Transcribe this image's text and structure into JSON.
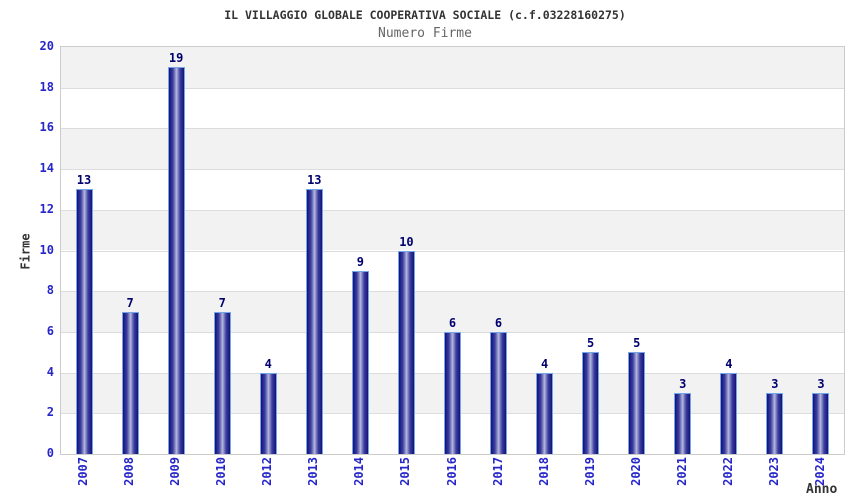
{
  "chart_data": {
    "type": "bar",
    "title": "IL VILLAGGIO GLOBALE COOPERATIVA SOCIALE (c.f.03228160275)",
    "subtitle": "Numero Firme",
    "xlabel": "Anno",
    "ylabel": "Firme",
    "categories": [
      "2007",
      "2008",
      "2009",
      "2010",
      "2012",
      "2013",
      "2014",
      "2015",
      "2016",
      "2017",
      "2018",
      "2019",
      "2020",
      "2021",
      "2022",
      "2023",
      "2024"
    ],
    "values": [
      13,
      7,
      19,
      7,
      4,
      13,
      9,
      10,
      6,
      6,
      4,
      5,
      5,
      3,
      4,
      3,
      3
    ],
    "ylim": [
      0,
      20
    ],
    "ytick_step": 2,
    "grid": "horizontal alternating bands of 2 units, gray on [2,4],[6,8],[10,12],[14,16],[18,20]",
    "legend": "none",
    "colors": {
      "bar_edge": "#14146e",
      "bar_center": "#b7bbe2",
      "bar_border": "#73a6e6",
      "tick_label": "#2626c9",
      "value_label": "#00006e",
      "band_gray": "#f2f2f2",
      "gridline": "#dcdcdc",
      "plot_border": "#cccccc",
      "title": "#333333",
      "subtitle": "#666666",
      "axis_title": "#333333",
      "background": "#ffffff"
    }
  }
}
